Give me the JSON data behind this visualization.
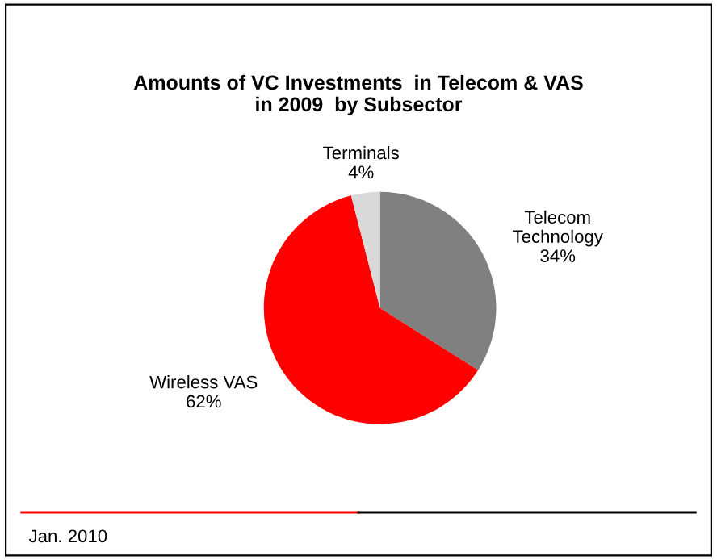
{
  "chart_data": {
    "type": "pie",
    "title": "Amounts of VC Investments  in Telecom & VAS\nin 2009  by Subsector",
    "categories": [
      "Telecom\nTechnology",
      "Wireless VAS",
      "Terminals"
    ],
    "values": [
      34,
      62,
      4
    ],
    "value_labels": [
      "34%",
      "62%",
      "4%"
    ],
    "colors": [
      "#808080",
      "#ff0000",
      "#d9d9d9"
    ],
    "annotations": [
      "Jan. 2010"
    ],
    "legend": false
  }
}
